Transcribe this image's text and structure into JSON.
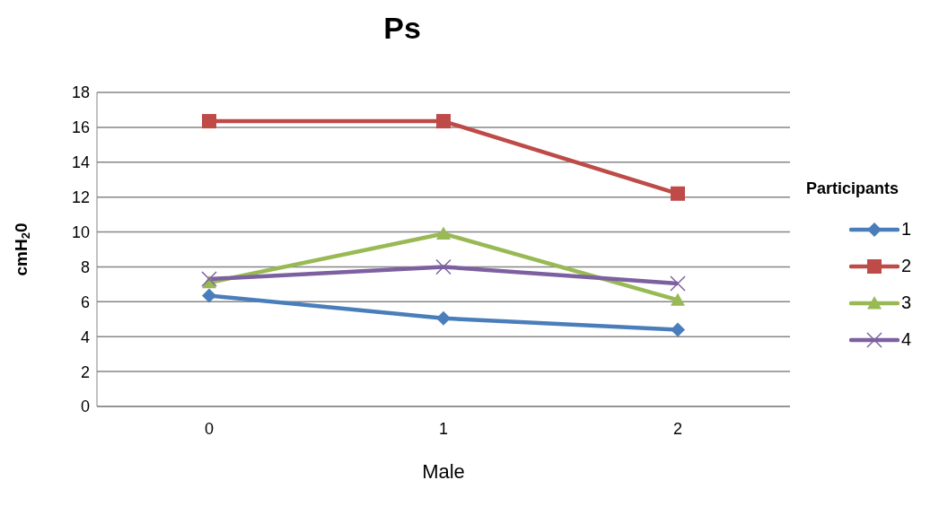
{
  "chart_data": {
    "type": "line",
    "title": "Ps",
    "xlabel": "Male",
    "ylabel": "cmH$_{2}$0",
    "legend_title": "Participants",
    "categories": [
      "0",
      "1",
      "2"
    ],
    "ylim": [
      0,
      18
    ],
    "yticks": [
      0,
      2,
      4,
      6,
      8,
      10,
      12,
      14,
      16,
      18
    ],
    "grid": "y",
    "legend": "right",
    "series": [
      {
        "name": "1",
        "color": "#4a7ebb",
        "marker": "diamond",
        "values": [
          6.35,
          5.05,
          4.4
        ]
      },
      {
        "name": "2",
        "color": "#be4b48",
        "marker": "square",
        "values": [
          16.35,
          16.35,
          12.2
        ]
      },
      {
        "name": "3",
        "color": "#98b954",
        "marker": "triangle",
        "values": [
          7.1,
          9.9,
          6.1
        ]
      },
      {
        "name": "4",
        "color": "#7d60a0",
        "marker": "cross",
        "values": [
          7.3,
          8.0,
          7.05
        ]
      }
    ]
  }
}
